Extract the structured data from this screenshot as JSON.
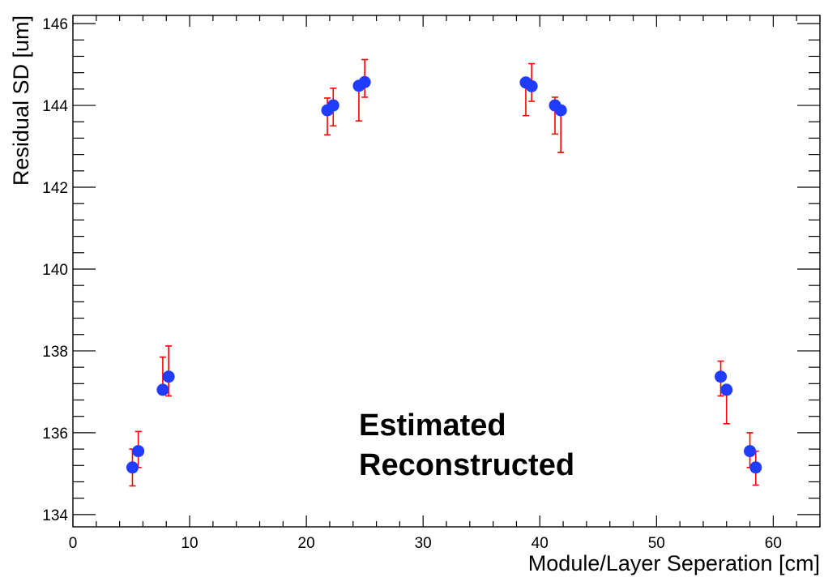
{
  "chart_data": {
    "type": "scatter",
    "xlabel": "Module/Layer Seperation [cm]",
    "ylabel": "Residual SD [um]",
    "xlim": [
      0,
      64
    ],
    "ylim": [
      133.7,
      146.2
    ],
    "x_ticks": [
      0,
      10,
      20,
      30,
      40,
      50,
      60
    ],
    "y_ticks": [
      134,
      136,
      138,
      140,
      142,
      144,
      146
    ],
    "x_tick_labels": [
      "0",
      "10",
      "20",
      "30",
      "40",
      "50",
      "60"
    ],
    "y_tick_labels": [
      "134",
      "136",
      "138",
      "140",
      "142",
      "144",
      "146"
    ],
    "grid": false,
    "legend_placement": "bottom-center",
    "legend": [
      {
        "label": "Estimated",
        "color": "#3d6aa8"
      },
      {
        "label": "Reconstructed",
        "color": "#a8403a"
      }
    ],
    "series": [
      {
        "name": "Estimated",
        "color": "#1f3cff",
        "points": [
          {
            "x": 5.1,
            "y": 135.15
          },
          {
            "x": 5.6,
            "y": 135.55
          },
          {
            "x": 7.7,
            "y": 137.05
          },
          {
            "x": 8.2,
            "y": 137.37
          },
          {
            "x": 21.8,
            "y": 143.88
          },
          {
            "x": 22.3,
            "y": 144.0
          },
          {
            "x": 24.5,
            "y": 144.48
          },
          {
            "x": 25.0,
            "y": 144.57
          },
          {
            "x": 38.8,
            "y": 144.56
          },
          {
            "x": 39.3,
            "y": 144.47
          },
          {
            "x": 41.3,
            "y": 144.0
          },
          {
            "x": 41.8,
            "y": 143.88
          },
          {
            "x": 55.5,
            "y": 137.37
          },
          {
            "x": 56.0,
            "y": 137.05
          },
          {
            "x": 58.0,
            "y": 135.55
          },
          {
            "x": 58.5,
            "y": 135.15
          }
        ]
      },
      {
        "name": "Reconstructed",
        "color": "#ff0000",
        "points": [
          {
            "x": 5.1,
            "lo": 134.7,
            "hi": 135.6
          },
          {
            "x": 5.6,
            "lo": 135.15,
            "hi": 136.03
          },
          {
            "x": 7.7,
            "lo": 137.0,
            "hi": 137.85
          },
          {
            "x": 8.2,
            "lo": 136.9,
            "hi": 138.12
          },
          {
            "x": 21.8,
            "lo": 143.28,
            "hi": 144.18
          },
          {
            "x": 22.3,
            "lo": 143.5,
            "hi": 144.42
          },
          {
            "x": 24.5,
            "lo": 143.62,
            "hi": 144.5
          },
          {
            "x": 25.0,
            "lo": 144.2,
            "hi": 145.12
          },
          {
            "x": 38.8,
            "lo": 143.75,
            "hi": 144.56
          },
          {
            "x": 39.3,
            "lo": 144.1,
            "hi": 145.02
          },
          {
            "x": 41.3,
            "lo": 143.3,
            "hi": 144.2
          },
          {
            "x": 41.8,
            "lo": 142.85,
            "hi": 143.95
          },
          {
            "x": 55.5,
            "lo": 136.9,
            "hi": 137.75
          },
          {
            "x": 56.0,
            "lo": 136.22,
            "hi": 137.05
          },
          {
            "x": 58.0,
            "lo": 135.15,
            "hi": 136.0
          },
          {
            "x": 58.5,
            "lo": 134.72,
            "hi": 135.55
          }
        ]
      }
    ]
  }
}
